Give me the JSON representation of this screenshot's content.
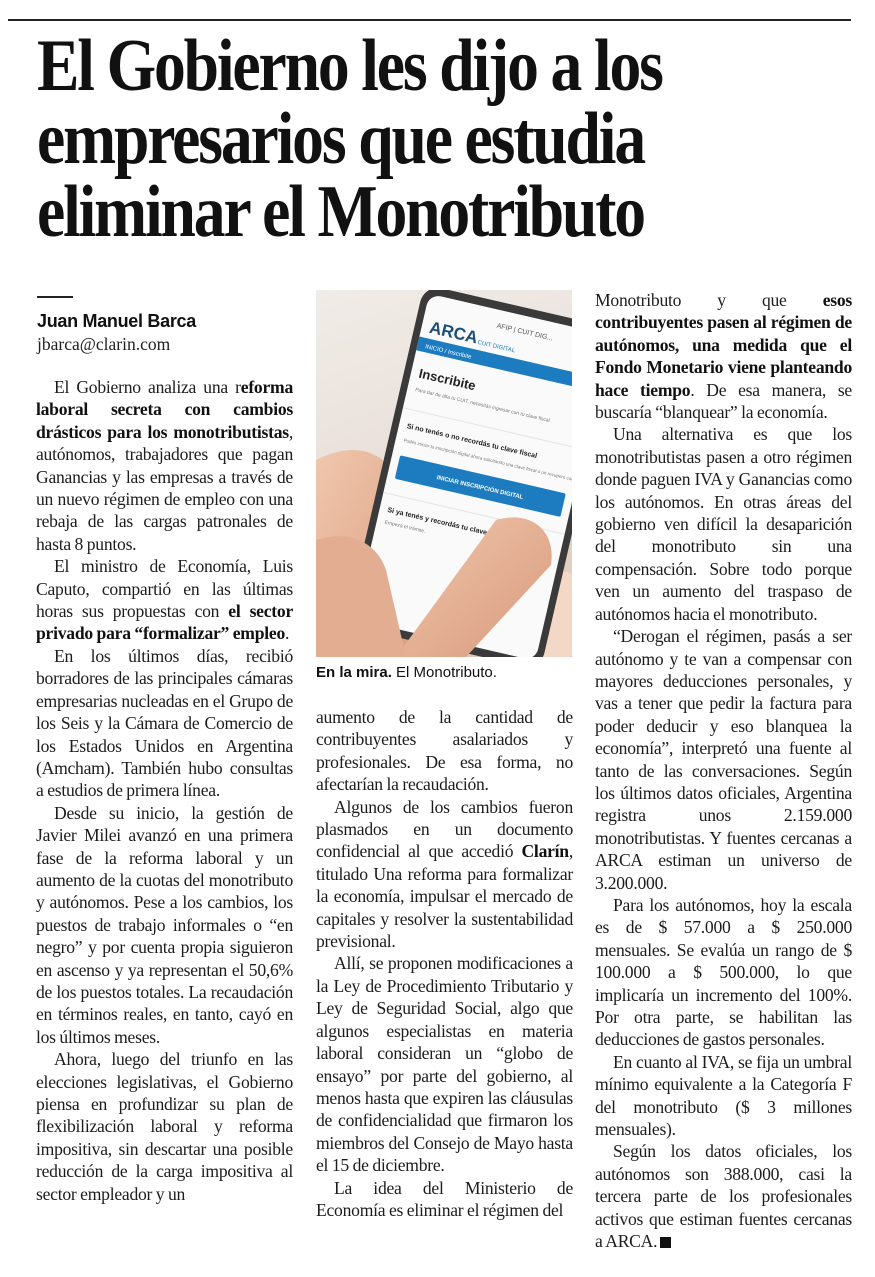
{
  "headline": {
    "lines": [
      "El Gobierno les dijo a los",
      "empresarios que estudia",
      "eliminar el Monotributo"
    ]
  },
  "byline": {
    "author": "Juan Manuel Barca",
    "email": "jbarca@clarin.com"
  },
  "photo": {
    "phone_screen": {
      "brand": "ARCA",
      "brand_sub": "CUIT DIGITAL",
      "status_bar": "AFIP | CUIT DIG...",
      "breadcrumb": "INICIO / Inscribite",
      "title": "Inscribite",
      "intro": "Para dar de alta tu CUIT, necesitás ingresar con tu clave fiscal.",
      "section1_title": "Si no tenés o no recordás tu clave fiscal",
      "section1_text": "Podés iniciar tu inscripción digital ahora solicitando una clave fiscal o un recupero con tu DNI.",
      "button": "INICIAR INSCRIPCIÓN DIGITAL",
      "section2_title": "Si ya tenés y recordás tu clave fiscal",
      "section2_text": "Empezá el trámite."
    },
    "caption_bold": "En la mira.",
    "caption_text": " El Monotributo."
  },
  "colors": {
    "arca_blue": "#1d7bbf",
    "text": "#1c1c1c"
  },
  "columns": [
    [
      {
        "cont": false,
        "segments": [
          {
            "t": "El Gobierno analiza una r"
          },
          {
            "t": "eforma laboral secreta con cambios drásticos para los monotributistas",
            "b": true
          },
          {
            "t": ", autónomos, trabajadores que pagan Ganancias y las empresas a través de un nuevo régimen de empleo con una rebaja de las cargas patronales de hasta 8 puntos."
          }
        ]
      },
      {
        "cont": false,
        "segments": [
          {
            "t": "El ministro de Economía, Luis Caputo, compartió en las últimas horas sus propuestas con "
          },
          {
            "t": "el sector privado para “formalizar” empleo",
            "b": true
          },
          {
            "t": "."
          }
        ]
      },
      {
        "cont": false,
        "segments": [
          {
            "t": "En los últimos días, recibió borradores de las principales cámaras empresarias nucleadas en el Grupo de los Seis y la Cámara de Comercio de los Estados Unidos en Argentina (Amcham). También hubo consultas a estudios de primera línea."
          }
        ]
      },
      {
        "cont": false,
        "segments": [
          {
            "t": "Desde su inicio, la gestión de Javier Milei avanzó en una primera fase de la reforma laboral y un aumento de la cuotas del monotributo y autónomos. Pese a los cambios, los puestos de trabajo informales o “en negro” y por cuenta propia siguieron en ascenso y ya representan el 50,6% de los puestos totales. La recaudación en términos reales, en tanto, cayó en los últimos meses."
          }
        ]
      },
      {
        "cont": false,
        "segments": [
          {
            "t": "Ahora, luego del triunfo en las elecciones legislativas, el Gobierno piensa en profundizar su plan de flexibilización laboral y reforma impositiva, sin descartar una posible reducción de la carga impositiva al sector empleador y un"
          }
        ]
      }
    ],
    [
      {
        "cont": true,
        "segments": [
          {
            "t": "aumento de la cantidad de contribuyentes asalariados y profesionales. De esa forma, no afectarían la recaudación."
          }
        ]
      },
      {
        "cont": false,
        "segments": [
          {
            "t": "Algunos de los cambios fueron plasmados en un documento confidencial al que accedió "
          },
          {
            "t": "Clarín",
            "b": true
          },
          {
            "t": ", titulado Una reforma para formalizar la economía, impulsar el mercado de capitales y resolver la sustentabilidad previsional."
          }
        ]
      },
      {
        "cont": false,
        "segments": [
          {
            "t": "Allí, se proponen modificaciones a la Ley de Procedimiento Tributario y Ley de Seguridad Social, algo que algunos especialistas en materia laboral consideran un “globo de ensayo” por parte del gobierno, al menos hasta que expiren las cláusulas de confidencialidad que firmaron los miembros del Consejo de Mayo hasta el 15 de diciembre."
          }
        ]
      },
      {
        "cont": false,
        "segments": [
          {
            "t": "La idea del Ministerio de Economía es eliminar el régimen del"
          }
        ]
      }
    ],
    [
      {
        "cont": true,
        "segments": [
          {
            "t": "Monotributo y que "
          },
          {
            "t": "esos contribuyentes pasen al régimen de autónomos, una medida que el Fondo Monetario viene planteando hace tiempo",
            "b": true
          },
          {
            "t": ". De esa manera, se buscaría “blanquear” la economía."
          }
        ]
      },
      {
        "cont": false,
        "segments": [
          {
            "t": "Una alternativa es que los monotributistas pasen a otro régimen donde paguen IVA y Ganancias como los autónomos. En otras áreas del gobierno ven difícil la desaparición del monotributo sin una compensación. Sobre todo porque ven un aumento del traspaso de autónomos hacia el monotributo."
          }
        ]
      },
      {
        "cont": false,
        "segments": [
          {
            "t": "“Derogan el régimen, pasás a ser autónomo y te van a compensar con mayores deducciones personales, y vas a tener que pedir la factura para poder deducir y eso blanquea la economía”, interpretó una fuente al tanto de las conversaciones. Según los últimos datos oficiales, Argentina registra unos 2.159.000 monotributistas. Y fuentes cercanas a ARCA estiman un universo de 3.200.000."
          }
        ]
      },
      {
        "cont": false,
        "segments": [
          {
            "t": "Para los autónomos, hoy la escala es de $ 57.000 a $ 250.000 mensuales. Se evalúa un rango de $ 100.000 a $ 500.000, lo que implicaría un incremento del 100%. Por otra parte, se habilitan las deducciones de gastos personales."
          }
        ]
      },
      {
        "cont": false,
        "segments": [
          {
            "t": "En cuanto al IVA, se fija un umbral mínimo equivalente a la Categoría F del monotributo ($ 3 millones mensuales)."
          }
        ]
      },
      {
        "cont": false,
        "end": true,
        "segments": [
          {
            "t": "Según los datos oficiales, los autónomos son 388.000, casi la tercera parte de los profesionales activos que estiman fuentes cercanas a ARCA."
          }
        ]
      }
    ]
  ]
}
